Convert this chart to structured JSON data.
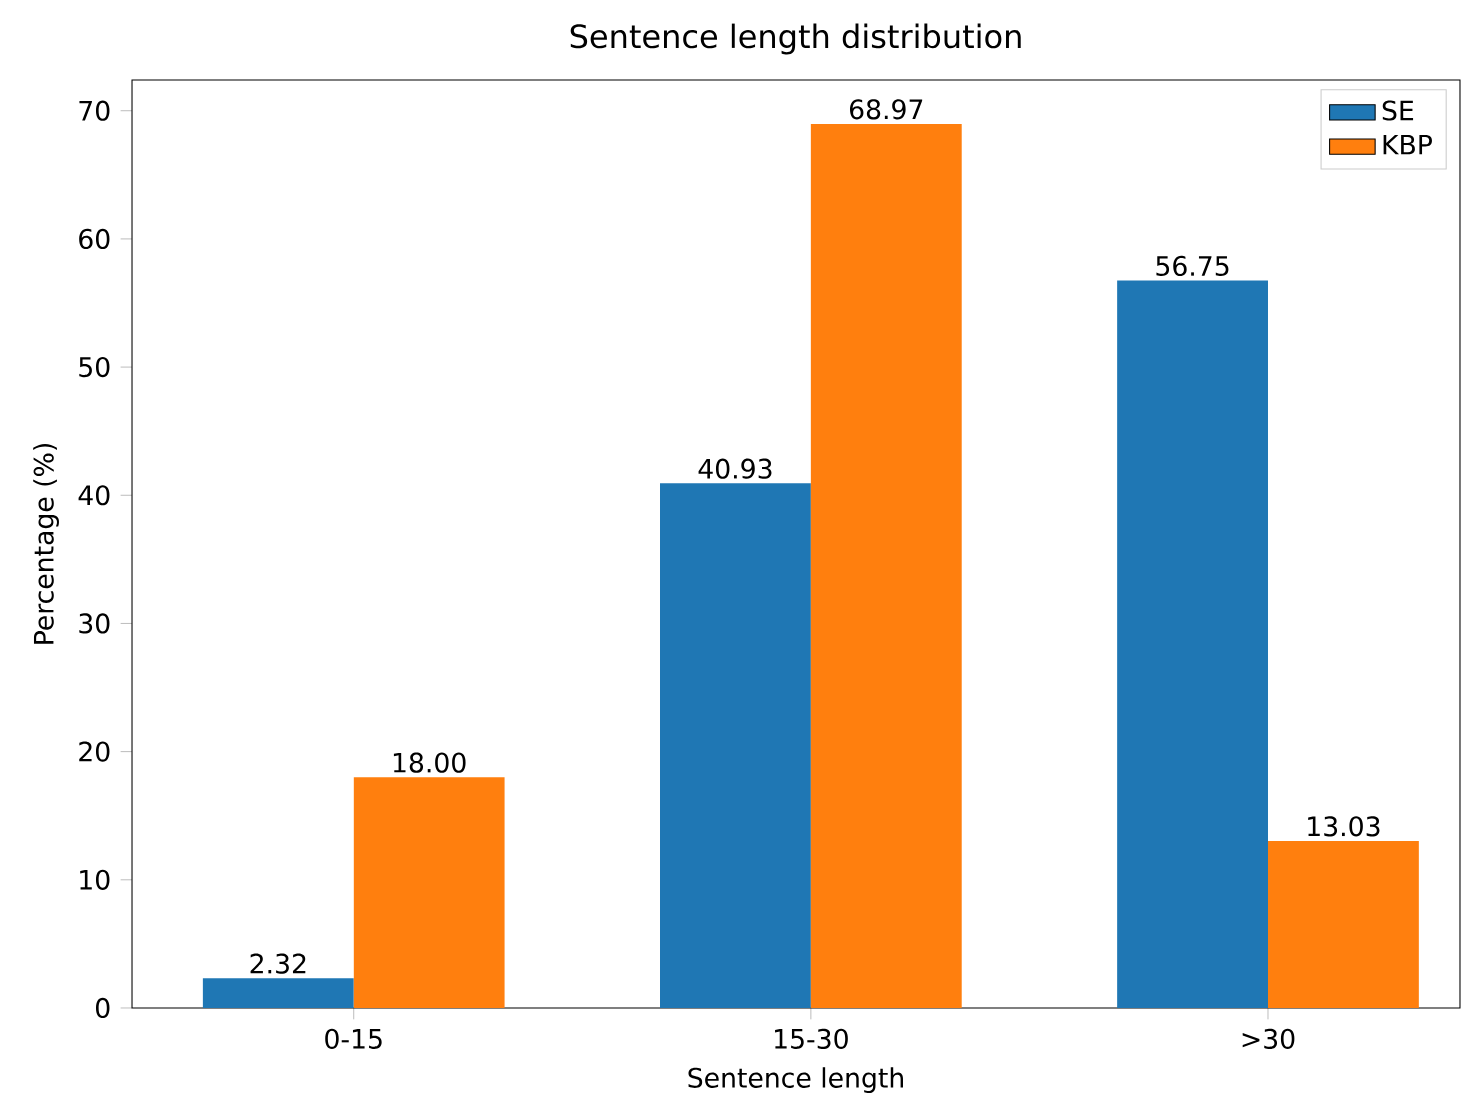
{
  "chart_data": {
    "type": "bar",
    "title": "Sentence length distribution",
    "xlabel": "Sentence length",
    "ylabel": "Percentage (%)",
    "categories": [
      "0-15",
      "15-30",
      ">30"
    ],
    "series": [
      {
        "name": "SE",
        "color": "#1f77b4",
        "values": [
          2.32,
          40.93,
          56.75
        ],
        "value_labels": [
          "2.32",
          "40.93",
          "56.75"
        ]
      },
      {
        "name": "KBP",
        "color": "#ff7f0e",
        "values": [
          18.0,
          68.97,
          13.03
        ],
        "value_labels": [
          "18.00",
          "68.97",
          "13.03"
        ]
      }
    ],
    "ylim": [
      0,
      72.4
    ],
    "yticks": [
      0,
      10,
      20,
      30,
      40,
      50,
      60,
      70
    ],
    "legend": "top right"
  }
}
